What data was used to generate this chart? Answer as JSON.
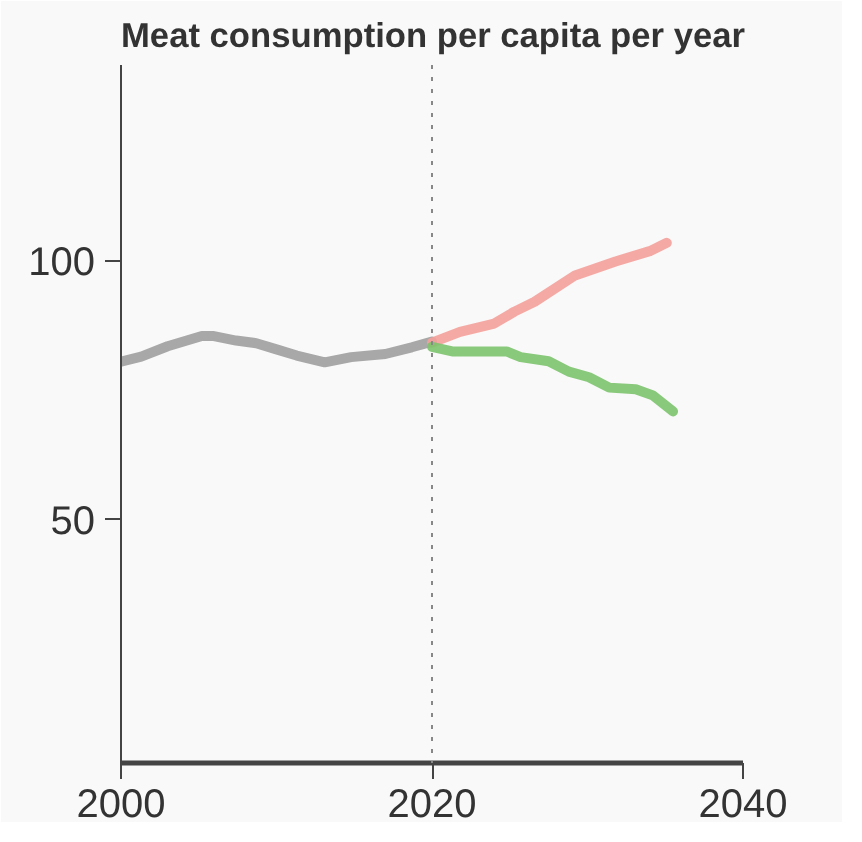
{
  "chart_data": {
    "type": "line",
    "title": "Meat consumption per capita per year",
    "xlim": [
      2000,
      2040
    ],
    "xticks": [
      2000,
      2020,
      2040
    ],
    "ylim": [
      3,
      138
    ],
    "yticks": [
      50,
      100
    ],
    "grid": false,
    "line_style": "solid",
    "marker": "none",
    "ref_lines": [
      {
        "axis": "x",
        "value": 2020,
        "color": "#888888",
        "line_style": "dotted"
      }
    ],
    "series": [
      {
        "color": "#9e9e9e",
        "x": [
          2000,
          2001.3,
          2003,
          2005.2,
          2005.9,
          2007.4,
          2008.7,
          2010,
          2011.3,
          2013.1,
          2014.8,
          2017,
          2018.7,
          2020
        ],
        "values": [
          80.6,
          81.6,
          83.6,
          85.6,
          85.6,
          84.7,
          84.2,
          83,
          81.8,
          80.5,
          81.5,
          82.1,
          83.4,
          84.5
        ]
      },
      {
        "color": "#f4a09a",
        "x": [
          2020,
          2021.8,
          2024,
          2025.3,
          2026.6,
          2029.2,
          2031.8,
          2034,
          2035.1
        ],
        "values": [
          84.3,
          86.4,
          88,
          90.3,
          92.2,
          97.3,
          100,
          102,
          103.6
        ]
      },
      {
        "color": "#7cc36d",
        "x": [
          2020,
          2021.3,
          2024.8,
          2025.7,
          2027.5,
          2028.8,
          2030.1,
          2031.4,
          2033.1,
          2034.2,
          2035.5
        ],
        "values": [
          83.5,
          82.6,
          82.6,
          81.5,
          80.7,
          78.7,
          77.6,
          75.6,
          75.3,
          74.1,
          71
        ]
      }
    ]
  }
}
